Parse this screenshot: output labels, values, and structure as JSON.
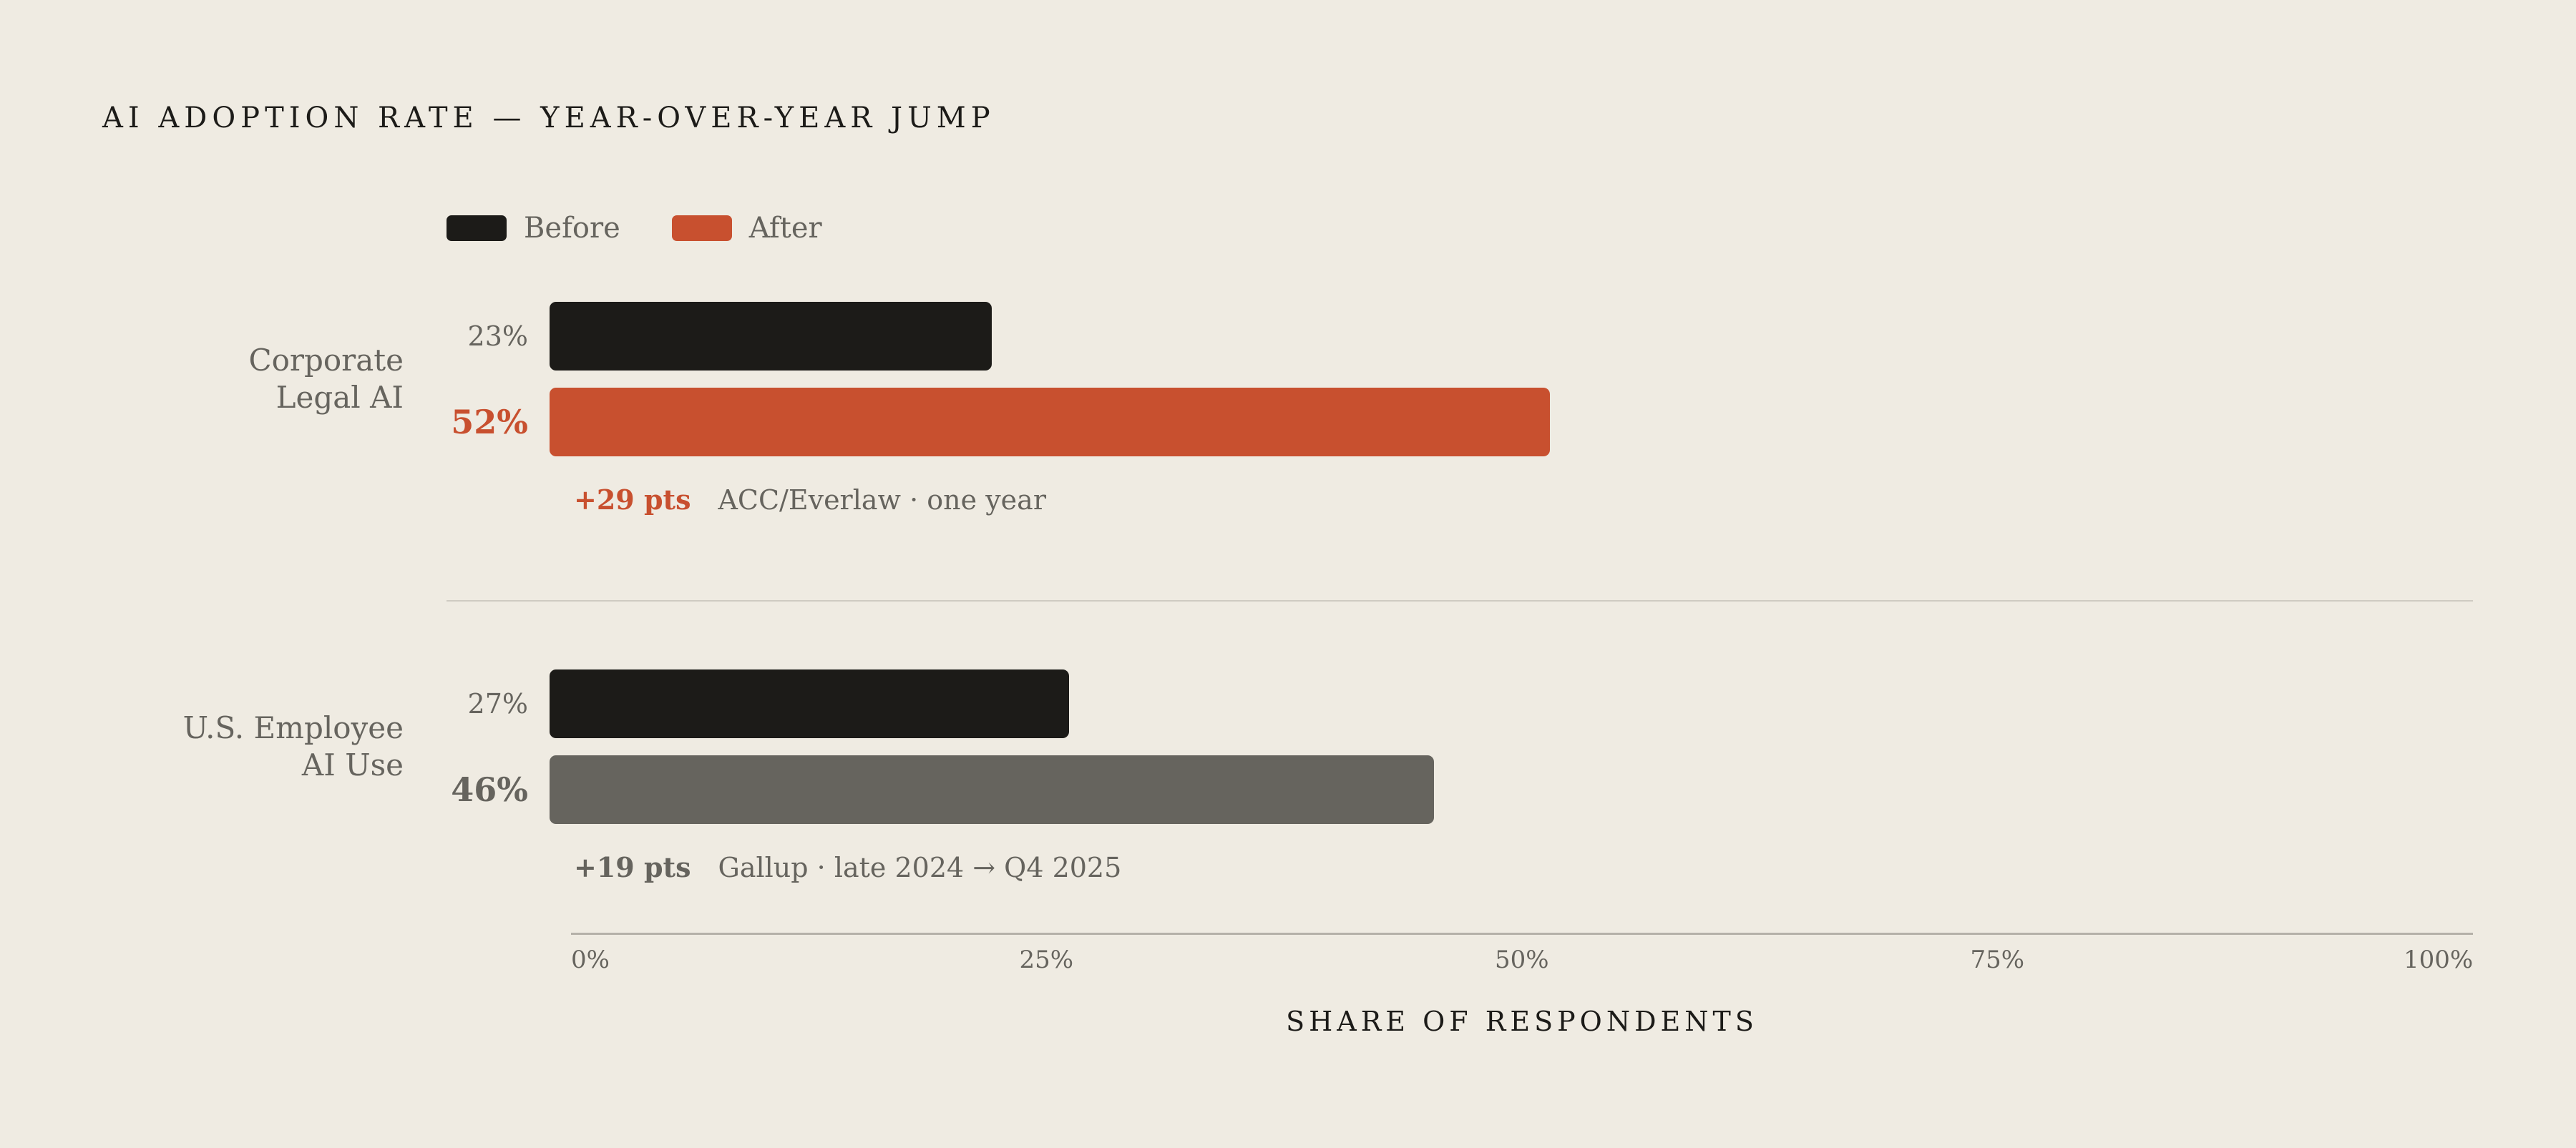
{
  "chart_data": {
    "type": "bar",
    "title": "AI ADOPTION RATE — YEAR-OVER-YEAR JUMP",
    "xlabel": "SHARE OF RESPONDENTS",
    "xlim": [
      0,
      100
    ],
    "ticks": [
      "0%",
      "25%",
      "50%",
      "75%",
      "100%"
    ],
    "tick_values": [
      0,
      25,
      50,
      75,
      100
    ],
    "legend": [
      {
        "name": "Before",
        "color": "#1c1b18"
      },
      {
        "name": "After",
        "color": "#c8502f"
      }
    ],
    "legend_position": "top-left",
    "groups": [
      {
        "label_lines": [
          "Corporate",
          "Legal AI"
        ],
        "before": 23,
        "before_label": "23%",
        "after": 52,
        "after_label": "52%",
        "after_color": "#c8502f",
        "delta": "+29 pts",
        "source": "ACC/Everlaw · one year"
      },
      {
        "label_lines": [
          "U.S. Employee",
          "AI Use"
        ],
        "before": 27,
        "before_label": "27%",
        "after": 46,
        "after_label": "46%",
        "after_color": "#66645e",
        "delta": "+19 pts",
        "source": "Gallup · late 2024 → Q4 2025"
      }
    ]
  }
}
